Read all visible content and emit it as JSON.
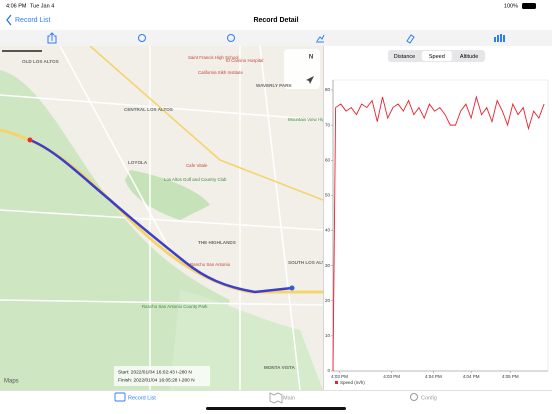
{
  "status_bar": {
    "time": "4:06 PM",
    "date": "Tue Jan 4",
    "battery": "100%"
  },
  "nav_bar": {
    "back": "Record List",
    "title": "Record Detail"
  },
  "map": {
    "compass": "N",
    "attribution": "Maps",
    "labels": [
      "OLD LOS ALTOS",
      "Saint Francis High School",
      "El Camino Hospital",
      "California Sikh Institute",
      "WAVERLY PARK",
      "CENTRAL LOS ALTOS",
      "Mountain View High School",
      "LOYOLA",
      "Cafe Vitale",
      "Los Altos Golf and Country Club",
      "THE HIGHLANDS",
      "Rancho San Antonio",
      "SOUTH LOS ALTOS",
      "Rancho San Antonio County Park",
      "MONTA VISTA"
    ],
    "start": "Start: 2022/01/04 16:02:43  I-280 N",
    "finish": "Finish: 2022/01/04 16:05:28  I-280 N"
  },
  "segments": [
    "Distance",
    "Speed",
    "Altitude"
  ],
  "selected_segment": "Speed",
  "chart_data": {
    "type": "line",
    "x": [
      0,
      2,
      6,
      10,
      14,
      18,
      22,
      26,
      30,
      34,
      38,
      42,
      46,
      50,
      54,
      58,
      62,
      66,
      70,
      74,
      78,
      82,
      86,
      90,
      94,
      98,
      102,
      106,
      110,
      114,
      118,
      122,
      126,
      130,
      134,
      138,
      142,
      146,
      150,
      154,
      158,
      162
    ],
    "series": [
      {
        "name": "Speed (m/h)",
        "color": "#e8222e",
        "values": [
          0,
          75,
          76,
          74,
          75,
          73,
          76,
          75,
          77,
          71,
          78,
          72,
          75,
          76,
          74,
          77,
          73,
          75,
          72,
          76,
          74,
          75,
          73,
          70,
          70,
          74,
          76,
          72,
          78,
          73,
          75,
          71,
          77,
          74,
          70,
          76,
          73,
          75,
          69,
          74,
          72,
          76
        ]
      }
    ],
    "xlim": [
      0,
      165
    ],
    "xticks": [
      {
        "value": 5,
        "label": "4:03 PM"
      },
      {
        "value": 45,
        "label": "4:03 PM"
      },
      {
        "value": 77,
        "label": "4:04 PM"
      },
      {
        "value": 106,
        "label": "4:04 PM"
      },
      {
        "value": 136,
        "label": "4:05 PM"
      }
    ],
    "ylim": [
      0,
      80
    ],
    "yticks": [
      0,
      10,
      20,
      30,
      40,
      50,
      60,
      70,
      80
    ],
    "legend": "bottom-left"
  },
  "tab_bar": [
    "Record List",
    "Main",
    "Config"
  ]
}
